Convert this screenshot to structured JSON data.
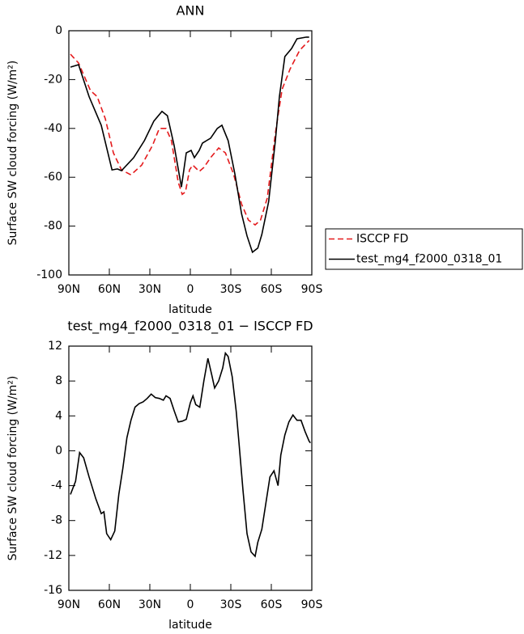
{
  "chart_data": [
    {
      "type": "line",
      "title": "ANN",
      "xlabel": "latitude",
      "ylabel": "Surface SW cloud forcing (W/m²)",
      "xlim": [
        90,
        -90
      ],
      "ylim": [
        -100,
        0
      ],
      "xticks": [
        {
          "value": 90,
          "label": "90N"
        },
        {
          "value": 60,
          "label": "60N"
        },
        {
          "value": 30,
          "label": "30N"
        },
        0,
        {
          "value": -30,
          "label": "30S"
        },
        {
          "value": -60,
          "label": "60S"
        },
        {
          "value": -90,
          "label": "90S"
        }
      ],
      "yticks": [
        0,
        -20,
        -40,
        -60,
        -80,
        -100
      ],
      "legend": "outside-right",
      "series": [
        {
          "name": "ISCCP FD",
          "color": "#e41a1c",
          "line_style": "dashed",
          "x": [
            88.8,
            82.8,
            74,
            69,
            63,
            57,
            51,
            44,
            36,
            28,
            23,
            18,
            14,
            9,
            6,
            3.6,
            0.6,
            -1.8,
            -6.6,
            -10,
            -15,
            -21,
            -26,
            -32,
            -38,
            -43,
            -48,
            -52,
            -57,
            -63,
            -68,
            -74,
            -81,
            -88
          ],
          "values": [
            -9.6,
            -13.2,
            -24.5,
            -27,
            -36,
            -50,
            -57,
            -59,
            -55,
            -47,
            -40,
            -40,
            -45,
            -62,
            -67,
            -66,
            -57,
            -55,
            -57.6,
            -56,
            -52,
            -48,
            -50,
            -58.6,
            -71,
            -77.5,
            -79.5,
            -77.5,
            -68.5,
            -42,
            -24,
            -15.6,
            -8,
            -4
          ]
        },
        {
          "name": "test_mg4_f2000_0318_01",
          "color": "#000000",
          "line_style": "solid",
          "x": [
            88.8,
            82.8,
            75,
            66,
            58,
            54,
            51,
            42,
            34,
            27,
            21,
            17,
            12,
            6.6,
            3,
            -0.6,
            -3,
            -6.6,
            -9,
            -15,
            -20,
            -23.4,
            -28,
            -33,
            -38,
            -42,
            -46,
            -50,
            -53,
            -58,
            -63,
            -66,
            -70,
            -75,
            -79,
            -86,
            -88
          ],
          "values": [
            -14.9,
            -13.9,
            -27,
            -38.7,
            -57,
            -56.6,
            -57.3,
            -52,
            -45,
            -37,
            -33,
            -34.8,
            -47,
            -64,
            -50,
            -49,
            -52,
            -49,
            -46,
            -44,
            -40,
            -38.7,
            -45,
            -58.6,
            -75,
            -84,
            -90.7,
            -89,
            -83.4,
            -70,
            -45,
            -27,
            -10.6,
            -7.3,
            -3.3,
            -2.6,
            -2.6
          ]
        }
      ]
    },
    {
      "type": "line",
      "title": "test_mg4_f2000_0318_01 − ISCCP FD",
      "xlabel": "latitude",
      "ylabel": "Surface SW cloud forcing (W/m²)",
      "xlim": [
        90,
        -90
      ],
      "ylim": [
        -16,
        12
      ],
      "xticks": [
        {
          "value": 90,
          "label": "90N"
        },
        {
          "value": 60,
          "label": "60N"
        },
        {
          "value": 30,
          "label": "30N"
        },
        0,
        {
          "value": -30,
          "label": "30S"
        },
        {
          "value": -60,
          "label": "60S"
        },
        {
          "value": -90,
          "label": "90S"
        }
      ],
      "yticks": [
        12,
        8,
        4,
        0,
        -4,
        -8,
        -12,
        -16
      ],
      "color": "#000000",
      "x": [
        88.8,
        85,
        82,
        79,
        75,
        70,
        66,
        64,
        62,
        59,
        56,
        53,
        50,
        47,
        44,
        41,
        38,
        35,
        32,
        29,
        26,
        23,
        20,
        18,
        15,
        12,
        9,
        6,
        3,
        0,
        -2,
        -4,
        -7,
        -10,
        -13,
        -16,
        -18,
        -21,
        -24,
        -26,
        -28,
        -31,
        -34,
        -36,
        -39,
        -42,
        -45,
        -48,
        -50,
        -53,
        -56,
        -59,
        -62,
        -65,
        -67,
        -70,
        -73,
        -76,
        -79,
        -82,
        -85,
        -88,
        -89
      ],
      "values": [
        -5,
        -3.5,
        -0.2,
        -0.8,
        -3,
        -5.5,
        -7.2,
        -7,
        -9.5,
        -10.2,
        -9.2,
        -5,
        -2,
        1.5,
        3.5,
        5,
        5.4,
        5.6,
        6,
        6.5,
        6.1,
        6,
        5.8,
        6.3,
        6,
        4.6,
        3.3,
        3.4,
        3.6,
        5.5,
        6.3,
        5.3,
        5,
        8,
        10.6,
        8.6,
        7.2,
        8,
        9.5,
        11.2,
        10.8,
        8.5,
        4.5,
        1,
        -4.5,
        -9.5,
        -11.6,
        -12.1,
        -10.5,
        -9,
        -6,
        -3,
        -2.3,
        -4,
        -0.5,
        1.8,
        3.3,
        4.1,
        3.5,
        3.5,
        2.2,
        1.1,
        0.9
      ]
    }
  ]
}
